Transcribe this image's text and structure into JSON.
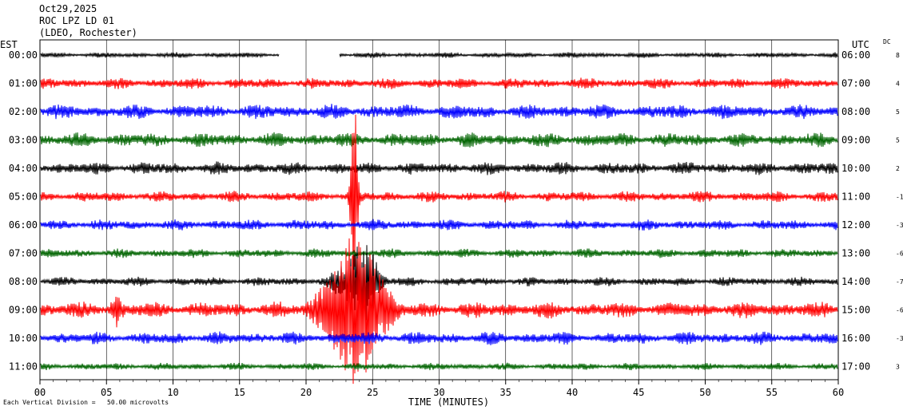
{
  "header": {
    "date": "Oct29,2025",
    "station": "ROC LPZ LD 01",
    "network": "(LDEO, Rochester)"
  },
  "left_axis_label": "EST",
  "right_axis_label": "UTC",
  "dc_label": "DC",
  "footnote": "Each Vertical Division =   50.00 microvolts",
  "chart_data": {
    "type": "line",
    "xlabel": "TIME (MINUTES)",
    "xlim": [
      0,
      60
    ],
    "x_ticks": [
      "00",
      "05",
      "10",
      "15",
      "20",
      "25",
      "30",
      "35",
      "40",
      "45",
      "50",
      "55",
      "60"
    ],
    "gridlines_every_minutes": 5,
    "trace_colors": [
      "#000000",
      "#ff0000",
      "#0000ff",
      "#006400"
    ],
    "rows": [
      {
        "est": "00:00",
        "utc": "06:00",
        "dc": "8",
        "color": "#000000",
        "amp": 3,
        "gaps": [
          [
            18,
            22.5
          ]
        ]
      },
      {
        "est": "01:00",
        "utc": "07:00",
        "dc": "4",
        "color": "#ff0000",
        "amp": 6
      },
      {
        "est": "02:00",
        "utc": "08:00",
        "dc": "5",
        "color": "#0000ff",
        "amp": 8
      },
      {
        "est": "03:00",
        "utc": "09:00",
        "dc": "5",
        "color": "#006400",
        "amp": 8
      },
      {
        "est": "04:00",
        "utc": "10:00",
        "dc": "2",
        "color": "#000000",
        "amp": 7
      },
      {
        "est": "05:00",
        "utc": "11:00",
        "dc": "-1",
        "color": "#ff0000",
        "amp": 6
      },
      {
        "est": "06:00",
        "utc": "12:00",
        "dc": "-3",
        "color": "#0000ff",
        "amp": 6
      },
      {
        "est": "07:00",
        "utc": "13:00",
        "dc": "-6",
        "color": "#006400",
        "amp": 5
      },
      {
        "est": "08:00",
        "utc": "14:00",
        "dc": "-7",
        "color": "#000000",
        "amp": 5
      },
      {
        "est": "09:00",
        "utc": "15:00",
        "dc": "-6",
        "color": "#ff0000",
        "amp": 9
      },
      {
        "est": "10:00",
        "utc": "16:00",
        "dc": "-3",
        "color": "#0000ff",
        "amp": 7
      },
      {
        "est": "11:00",
        "utc": "17:00",
        "dc": "3",
        "color": "#006400",
        "amp": 4
      }
    ],
    "events": [
      {
        "row": 9,
        "start": 19.0,
        "peak": 23.8,
        "end": 28.0,
        "peak_amp": 110
      },
      {
        "row": 9,
        "start": 4.8,
        "peak": 5.7,
        "end": 7.0,
        "peak_amp": 24
      },
      {
        "row": 5,
        "start": 23.0,
        "peak": 23.6,
        "end": 24.2,
        "peak_amp": 150
      },
      {
        "row": 8,
        "start": 20.5,
        "peak": 24.5,
        "end": 26.5,
        "peak_amp": 60
      }
    ]
  }
}
